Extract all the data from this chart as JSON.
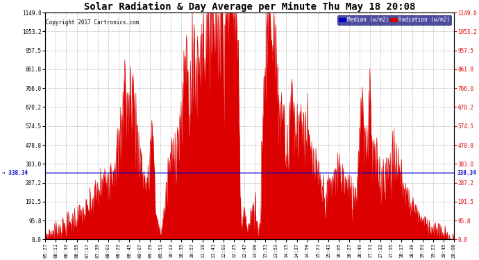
{
  "title": "Solar Radiation & Day Average per Minute Thu May 18 20:08",
  "copyright": "Copyright 2017 Cartronics.com",
  "median_value": 338.34,
  "ymax": 1149.0,
  "ymin": 0.0,
  "yticks": [
    0.0,
    95.8,
    191.5,
    287.2,
    383.0,
    478.8,
    574.5,
    670.2,
    766.0,
    861.8,
    957.5,
    1053.2,
    1149.0
  ],
  "background_color": "#ffffff",
  "plot_bg_color": "#ffffff",
  "bar_color": "#dd0000",
  "median_line_color": "#0000cc",
  "grid_color": "#aaaaaa",
  "legend_median_bg": "#0000cc",
  "legend_radiation_bg": "#cc0000",
  "legend_text_color": "#ffffff",
  "title_color": "#000000",
  "copyright_color": "#000000",
  "right_ytick_color": "#dd0000",
  "left_median_label_color": "#0000cc",
  "time_labels": [
    "05:27",
    "06:11",
    "06:33",
    "06:55",
    "07:17",
    "07:39",
    "08:01",
    "08:23",
    "08:45",
    "09:07",
    "09:29",
    "09:51",
    "10:13",
    "10:35",
    "10:57",
    "11:19",
    "11:41",
    "12:03",
    "12:25",
    "12:47",
    "13:09",
    "13:31",
    "13:53",
    "14:15",
    "14:37",
    "14:59",
    "15:21",
    "15:43",
    "16:05",
    "16:27",
    "16:49",
    "17:11",
    "17:33",
    "17:55",
    "18:17",
    "18:39",
    "19:01",
    "19:23",
    "19:45",
    "20:08"
  ]
}
